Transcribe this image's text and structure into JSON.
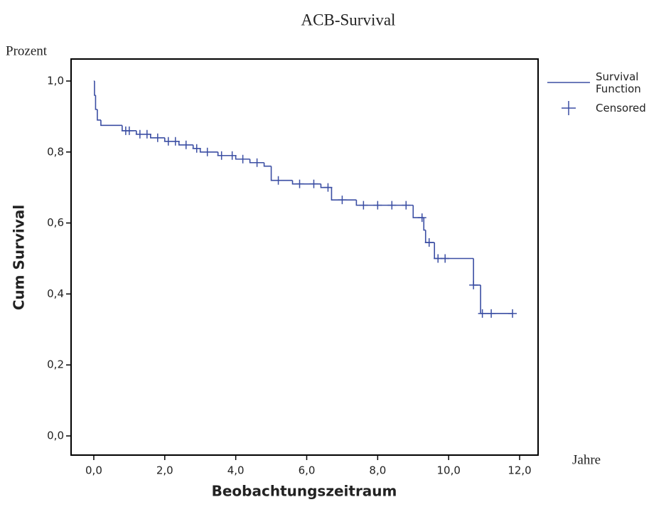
{
  "chart_data": {
    "type": "survival",
    "title": "ACB-Survival",
    "y_unit_label": "Prozent",
    "x_unit_label": "Jahre",
    "x_label": "Beobachtungszeitraum",
    "y_label": "Cum Survival",
    "xlim": [
      -0.64,
      12.52
    ],
    "ylim": [
      -0.054,
      1.062
    ],
    "xticks": [
      {
        "value": 0,
        "label": "0,0"
      },
      {
        "value": 2,
        "label": "2,0"
      },
      {
        "value": 4,
        "label": "4,0"
      },
      {
        "value": 6,
        "label": "6,0"
      },
      {
        "value": 8,
        "label": "8,0"
      },
      {
        "value": 10,
        "label": "10,0"
      },
      {
        "value": 12,
        "label": "12,0"
      }
    ],
    "yticks": [
      {
        "value": 0,
        "label": "0,0"
      },
      {
        "value": 0.2,
        "label": "0,2"
      },
      {
        "value": 0.4,
        "label": "0,4"
      },
      {
        "value": 0.6,
        "label": "0,6"
      },
      {
        "value": 0.8,
        "label": "0,8"
      },
      {
        "value": 1.0,
        "label": "1,0"
      }
    ],
    "series": [
      {
        "name": "Survival Function",
        "color": "#3b4ea3",
        "x": [
          0,
          0.02,
          0.05,
          0.1,
          0.2,
          0.8,
          1.2,
          1.6,
          2.0,
          2.4,
          2.8,
          3.0,
          3.5,
          4.0,
          4.4,
          4.8,
          5.0,
          5.6,
          6.4,
          6.7,
          7.4,
          9.0,
          9.3,
          9.35,
          9.6,
          10.7,
          10.9,
          11.8
        ],
        "values": [
          1.0,
          0.96,
          0.92,
          0.89,
          0.875,
          0.86,
          0.85,
          0.84,
          0.83,
          0.82,
          0.81,
          0.8,
          0.79,
          0.78,
          0.77,
          0.76,
          0.72,
          0.71,
          0.7,
          0.665,
          0.65,
          0.615,
          0.58,
          0.545,
          0.5,
          0.425,
          0.345,
          0.345
        ]
      },
      {
        "name": "Censored",
        "color": "#3b4ea3",
        "x": [
          0.9,
          1.0,
          1.3,
          1.5,
          1.8,
          2.1,
          2.3,
          2.6,
          2.9,
          3.2,
          3.6,
          3.9,
          4.2,
          4.6,
          5.2,
          5.8,
          6.2,
          6.6,
          7.0,
          7.6,
          8.0,
          8.4,
          8.8,
          9.25,
          9.45,
          9.7,
          9.9,
          10.7,
          10.95,
          11.2,
          11.8
        ],
        "values": [
          0.86,
          0.86,
          0.85,
          0.85,
          0.84,
          0.83,
          0.83,
          0.82,
          0.81,
          0.8,
          0.79,
          0.79,
          0.78,
          0.77,
          0.72,
          0.71,
          0.71,
          0.7,
          0.665,
          0.65,
          0.65,
          0.65,
          0.65,
          0.615,
          0.545,
          0.5,
          0.5,
          0.425,
          0.345,
          0.345,
          0.345
        ]
      }
    ]
  }
}
